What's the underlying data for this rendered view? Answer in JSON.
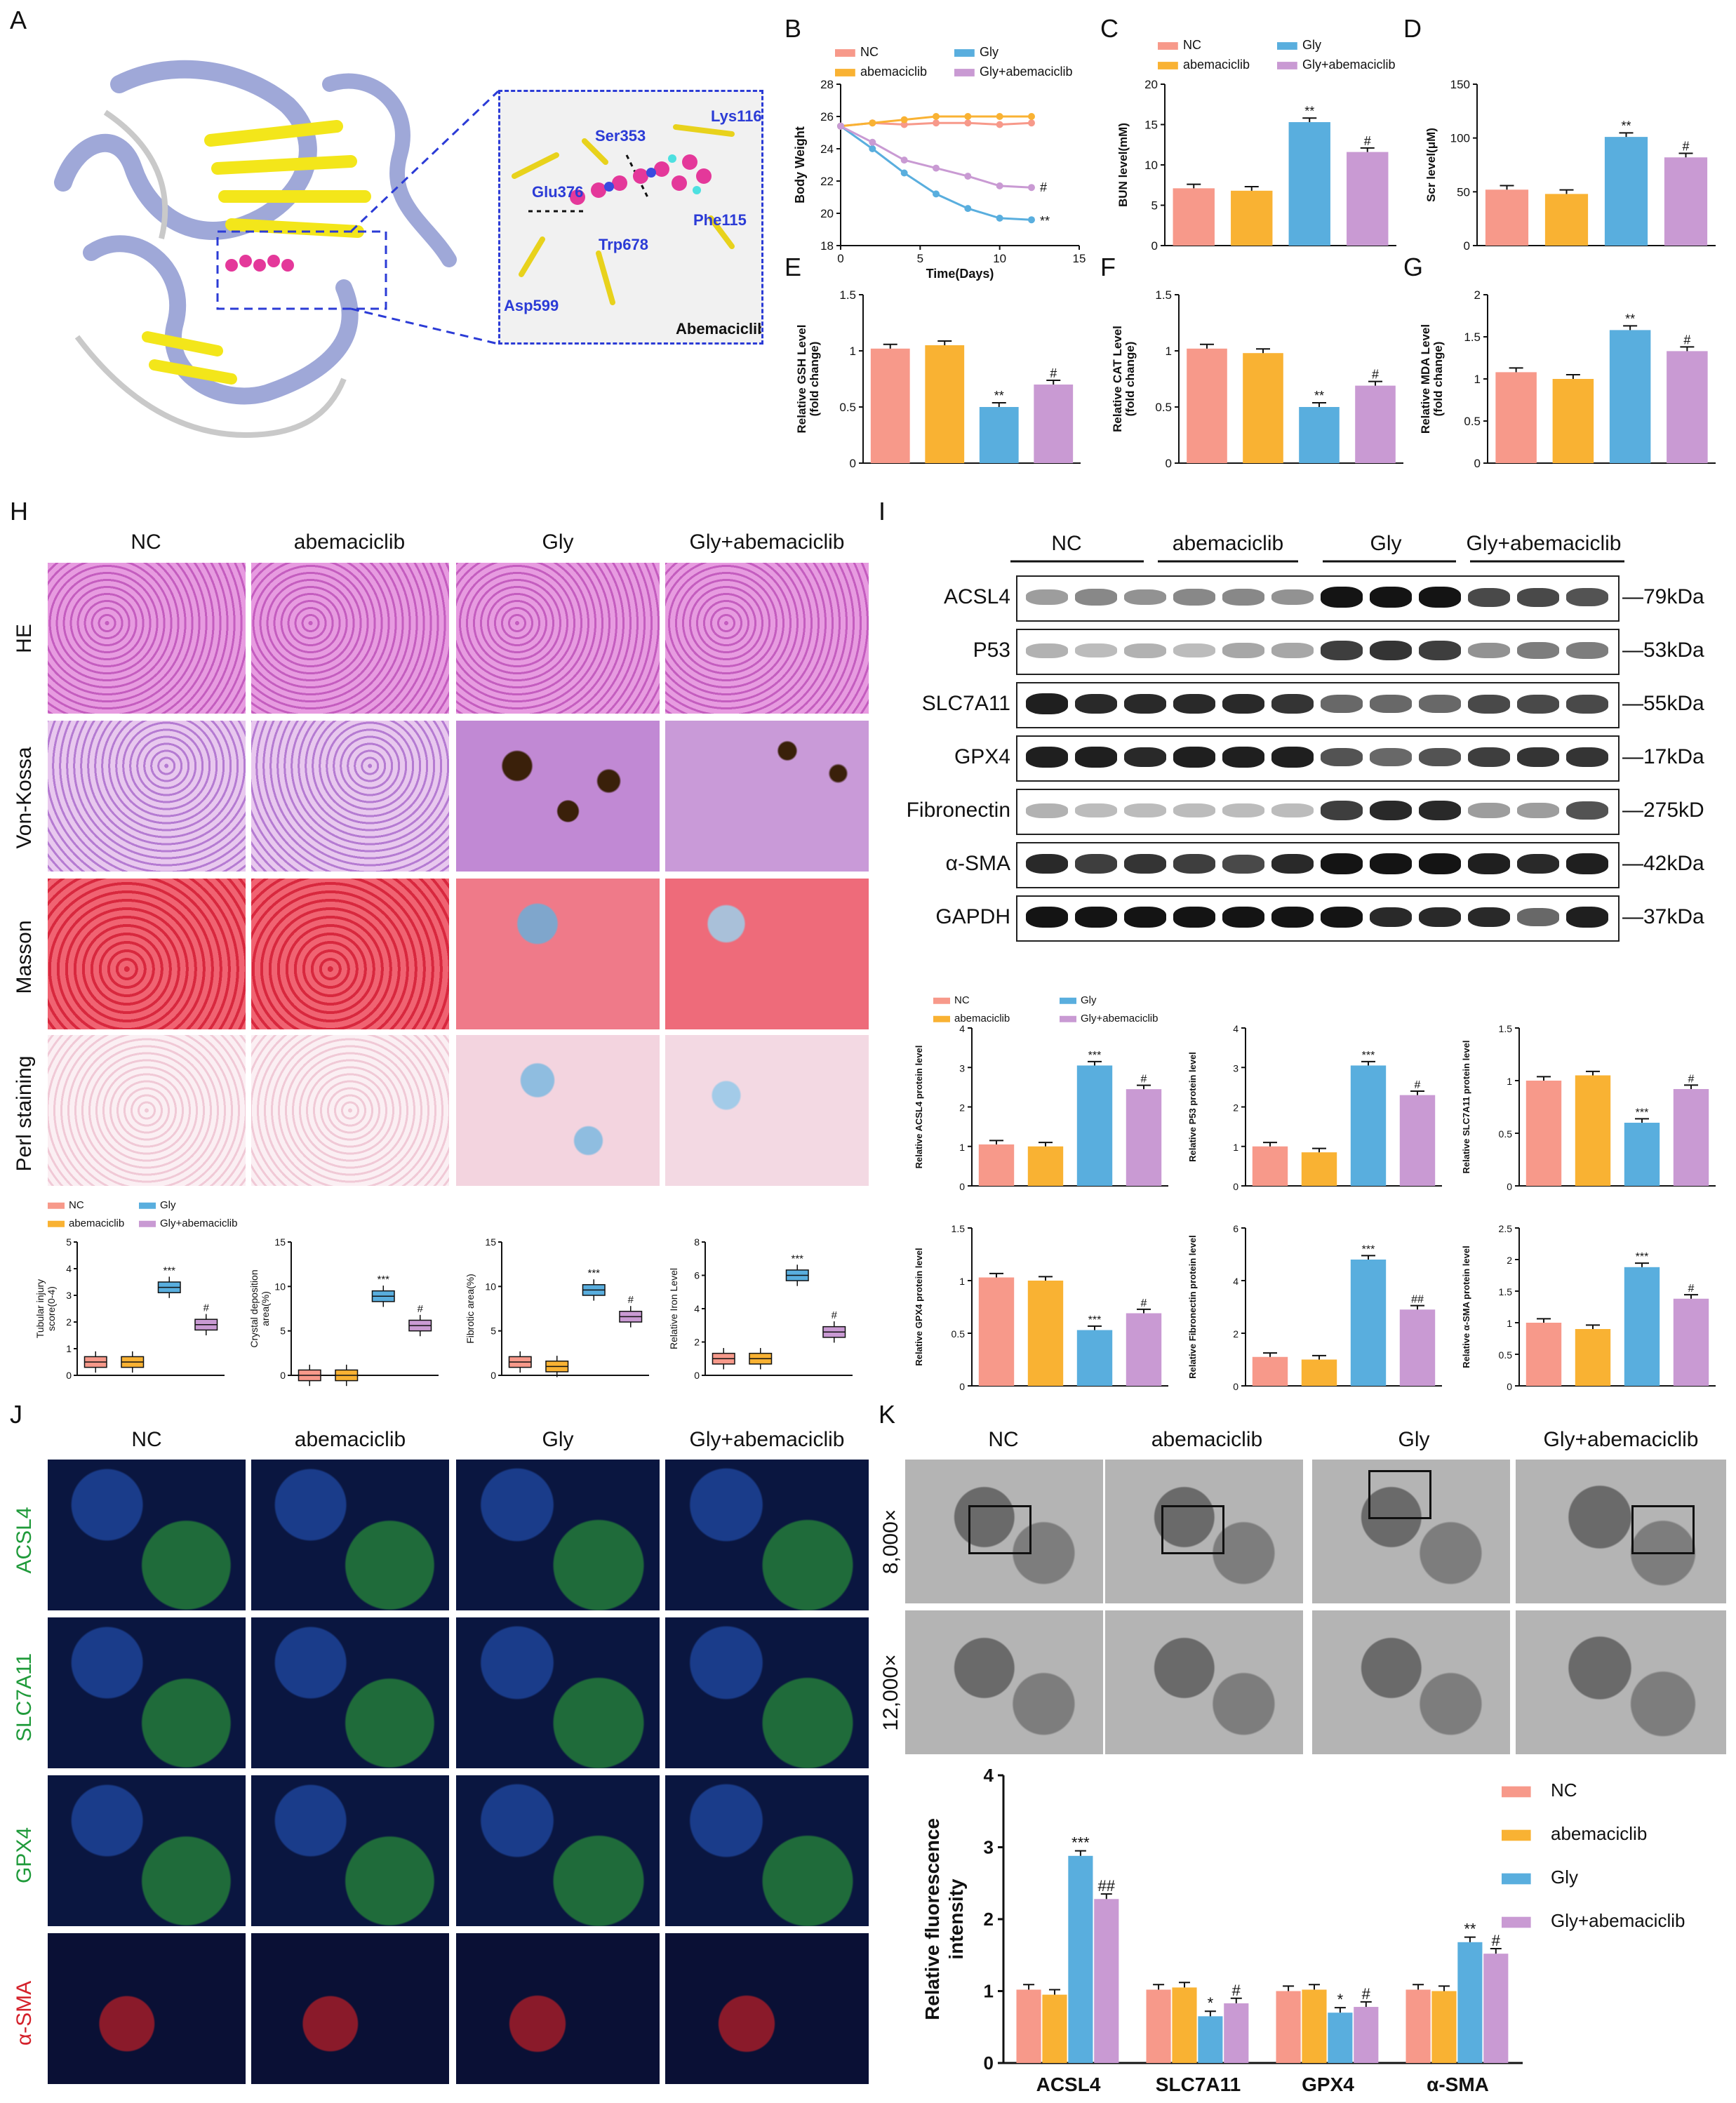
{
  "colors": {
    "nc": "#f7998a",
    "abem": "#f9b233",
    "gly": "#59aede",
    "glyab": "#c99ad3",
    "navy_protein": "#9fa8d8",
    "yellow_sheet": "#f3e61a",
    "ligand": "#e4389a"
  },
  "panel_letters": {
    "A": "A",
    "B": "B",
    "C": "C",
    "D": "D",
    "E": "E",
    "F": "F",
    "G": "G",
    "H": "H",
    "I": "I",
    "J": "J",
    "K": "K"
  },
  "groups": [
    "NC",
    "abemaciclib",
    "Gly",
    "Gly+abemaciclib"
  ],
  "panelA": {
    "residues": [
      "Lys116",
      "Ser353",
      "Glu376",
      "Phe115",
      "Trp678",
      "Asp599"
    ],
    "ligand_name": "Abemaciclib"
  },
  "panelH": {
    "row_labels": [
      "HE",
      "Von-Kossa",
      "Masson",
      "Perl staining"
    ],
    "legend": [
      "NC",
      "Gly",
      "abemaciclib",
      "Gly+abemaciclib"
    ]
  },
  "panelI": {
    "group_headers": [
      "NC",
      "abemaciclib",
      "Gly",
      "Gly+abemaciclib"
    ],
    "proteins": [
      "ACSL4",
      "P53",
      "SLC7A11",
      "GPX4",
      "Fibronectin",
      "α-SMA",
      "GAPDH"
    ],
    "weights": [
      "79kDa",
      "53kDa",
      "55kDa",
      "17kDa",
      "275kD",
      "42kDa",
      "37kDa"
    ],
    "legend": [
      "NC",
      "Gly",
      "abemaciclib",
      "Gly+abemaciclib"
    ]
  },
  "panelJ": {
    "row_labels": [
      "ACSL4",
      "SLC7A11",
      "GPX4",
      "α-SMA"
    ]
  },
  "panelK": {
    "row_labels": [
      "8,000×",
      "12,000×"
    ],
    "legend": [
      "NC",
      "abemaciclib",
      "Gly",
      "Gly+abemaciclib"
    ]
  },
  "chart_data": [
    {
      "id": "B",
      "type": "line",
      "xlabel": "Time(Days)",
      "ylabel": "Body Weight",
      "xlim": [
        0,
        15
      ],
      "ylim": [
        18,
        28
      ],
      "xticks": [
        0,
        5,
        10,
        15
      ],
      "yticks": [
        18,
        20,
        22,
        24,
        26,
        28
      ],
      "legend": [
        "NC",
        "Gly",
        "abemaciclib",
        "Gly+abemaciclib"
      ],
      "x": [
        0,
        2,
        4,
        6,
        8,
        10,
        12
      ],
      "series": [
        {
          "name": "NC",
          "values": [
            25.4,
            25.6,
            25.5,
            25.6,
            25.6,
            25.5,
            25.6
          ]
        },
        {
          "name": "abemaciclib",
          "values": [
            25.4,
            25.6,
            25.8,
            26.0,
            26.0,
            26.0,
            26.0
          ]
        },
        {
          "name": "Gly",
          "values": [
            25.4,
            24.0,
            22.5,
            21.2,
            20.3,
            19.7,
            19.6
          ]
        },
        {
          "name": "Gly+abemaciclib",
          "values": [
            25.4,
            24.4,
            23.3,
            22.8,
            22.3,
            21.7,
            21.6
          ]
        }
      ],
      "annotations": [
        "#",
        "**"
      ]
    },
    {
      "id": "C",
      "type": "bar",
      "ylabel": "BUN level(mM)",
      "ylim": [
        0,
        20
      ],
      "yticks": [
        0,
        5,
        10,
        15,
        20
      ],
      "categories": [
        "NC",
        "abemaciclib",
        "Gly",
        "Gly+abemaciclib"
      ],
      "values": [
        7.1,
        6.8,
        15.3,
        11.6
      ],
      "annotations": [
        "",
        "",
        "**",
        "#"
      ],
      "legend": [
        "NC",
        "Gly",
        "abemaciclib",
        "Gly+abemaciclib"
      ]
    },
    {
      "id": "D",
      "type": "bar",
      "ylabel": "Scr level(μM)",
      "ylim": [
        0,
        150
      ],
      "yticks": [
        0,
        50,
        100,
        150
      ],
      "categories": [
        "NC",
        "abemaciclib",
        "Gly",
        "Gly+abemaciclib"
      ],
      "values": [
        52,
        48,
        101,
        82
      ],
      "annotations": [
        "",
        "",
        "**",
        "#"
      ]
    },
    {
      "id": "E",
      "type": "bar",
      "ylabel": "Relative GSH Level (fold change)",
      "ylim": [
        0,
        1.5
      ],
      "yticks": [
        0.0,
        0.5,
        1.0,
        1.5
      ],
      "categories": [
        "NC",
        "abemaciclib",
        "Gly",
        "Gly+abemaciclib"
      ],
      "values": [
        1.02,
        1.05,
        0.5,
        0.7
      ],
      "annotations": [
        "",
        "",
        "**",
        "#"
      ]
    },
    {
      "id": "F",
      "type": "bar",
      "ylabel": "Relative CAT Level (fold change)",
      "ylim": [
        0,
        1.5
      ],
      "yticks": [
        0.0,
        0.5,
        1.0,
        1.5
      ],
      "categories": [
        "NC",
        "abemaciclib",
        "Gly",
        "Gly+abemaciclib"
      ],
      "values": [
        1.02,
        0.98,
        0.5,
        0.69
      ],
      "annotations": [
        "",
        "",
        "**",
        "#"
      ]
    },
    {
      "id": "G",
      "type": "bar",
      "ylabel": "Relative MDA Level (fold change)",
      "ylim": [
        0,
        2.0
      ],
      "yticks": [
        0.0,
        0.5,
        1.0,
        1.5,
        2.0
      ],
      "categories": [
        "NC",
        "abemaciclib",
        "Gly",
        "Gly+abemaciclib"
      ],
      "values": [
        1.08,
        1.0,
        1.58,
        1.33
      ],
      "annotations": [
        "",
        "",
        "**",
        "#"
      ]
    },
    {
      "id": "H1",
      "type": "box",
      "ylabel": "Tubular injury score(0-4)",
      "ylim": [
        0,
        5
      ],
      "yticks": [
        0,
        1,
        2,
        3,
        4,
        5
      ],
      "categories": [
        "NC",
        "abemaciclib",
        "Gly",
        "Gly+abemaciclib"
      ],
      "values": [
        0.5,
        0.5,
        3.3,
        1.9
      ],
      "annotations": [
        "",
        "",
        "***",
        "#"
      ]
    },
    {
      "id": "H2",
      "type": "box",
      "ylabel": "Crystal deposition area(%)",
      "ylim": [
        0,
        15
      ],
      "yticks": [
        0,
        5,
        10,
        15
      ],
      "categories": [
        "NC",
        "abemaciclib",
        "Gly",
        "Gly+abemaciclib"
      ],
      "values": [
        0,
        0,
        8.9,
        5.6
      ],
      "annotations": [
        "",
        "",
        "***",
        "#"
      ]
    },
    {
      "id": "H3",
      "type": "box",
      "ylabel": "Fibrotic area(%)",
      "ylim": [
        0,
        15
      ],
      "yticks": [
        0,
        5,
        10,
        15
      ],
      "categories": [
        "NC",
        "abemaciclib",
        "Gly",
        "Gly+abemaciclib"
      ],
      "values": [
        1.5,
        1.0,
        9.6,
        6.6
      ],
      "annotations": [
        "",
        "",
        "***",
        "#"
      ]
    },
    {
      "id": "H4",
      "type": "box",
      "ylabel": "Relative Iron Level",
      "ylim": [
        0,
        8
      ],
      "yticks": [
        0,
        2,
        4,
        6,
        8
      ],
      "categories": [
        "NC",
        "abemaciclib",
        "Gly",
        "Gly+abemaciclib"
      ],
      "values": [
        1.0,
        1.0,
        6.0,
        2.6
      ],
      "annotations": [
        "",
        "",
        "***",
        "#"
      ]
    },
    {
      "id": "I1",
      "type": "bar",
      "ylabel": "Relative ACSL4 protein level",
      "ylim": [
        0,
        4
      ],
      "yticks": [
        0,
        1,
        2,
        3,
        4
      ],
      "categories": [
        "NC",
        "abemaciclib",
        "Gly",
        "Gly+abemaciclib"
      ],
      "values": [
        1.05,
        1.0,
        3.05,
        2.45
      ],
      "annotations": [
        "",
        "",
        "***",
        "#"
      ]
    },
    {
      "id": "I2",
      "type": "bar",
      "ylabel": "Relative P53 protein level",
      "ylim": [
        0,
        4
      ],
      "yticks": [
        0,
        1,
        2,
        3,
        4
      ],
      "categories": [
        "NC",
        "abemaciclib",
        "Gly",
        "Gly+abemaciclib"
      ],
      "values": [
        1.0,
        0.85,
        3.05,
        2.3
      ],
      "annotations": [
        "",
        "",
        "***",
        "#"
      ]
    },
    {
      "id": "I3",
      "type": "bar",
      "ylabel": "Relative SLC7A11 protein level",
      "ylim": [
        0,
        1.5
      ],
      "yticks": [
        0.0,
        0.5,
        1.0,
        1.5
      ],
      "categories": [
        "NC",
        "abemaciclib",
        "Gly",
        "Gly+abemaciclib"
      ],
      "values": [
        1.0,
        1.05,
        0.6,
        0.92
      ],
      "annotations": [
        "",
        "",
        "***",
        "#"
      ]
    },
    {
      "id": "I4",
      "type": "bar",
      "ylabel": "Relative GPX4 protein level",
      "ylim": [
        0,
        1.5
      ],
      "yticks": [
        0.0,
        0.5,
        1.0,
        1.5
      ],
      "categories": [
        "NC",
        "abemaciclib",
        "Gly",
        "Gly+abemaciclib"
      ],
      "values": [
        1.03,
        1.0,
        0.53,
        0.69
      ],
      "annotations": [
        "",
        "",
        "***",
        "#"
      ]
    },
    {
      "id": "I5",
      "type": "bar",
      "ylabel": "Relative Fibronectin protein level",
      "ylim": [
        0,
        6
      ],
      "yticks": [
        0,
        2,
        4,
        6
      ],
      "categories": [
        "NC",
        "abemaciclib",
        "Gly",
        "Gly+abemaciclib"
      ],
      "values": [
        1.1,
        1.0,
        4.8,
        2.9
      ],
      "annotations": [
        "",
        "",
        "***",
        "##"
      ]
    },
    {
      "id": "I6",
      "type": "bar",
      "ylabel": "Relative α-SMA protein level",
      "ylim": [
        0,
        2.5
      ],
      "yticks": [
        0.0,
        0.5,
        1.0,
        1.5,
        2.0,
        2.5
      ],
      "categories": [
        "NC",
        "abemaciclib",
        "Gly",
        "Gly+abemaciclib"
      ],
      "values": [
        1.0,
        0.9,
        1.88,
        1.38
      ],
      "annotations": [
        "",
        "",
        "***",
        "#"
      ]
    },
    {
      "id": "K",
      "type": "bar",
      "ylabel": "Relative fluorescence intensity",
      "ylim": [
        0,
        4
      ],
      "yticks": [
        0,
        1,
        2,
        3,
        4
      ],
      "categories": [
        "ACSL4",
        "SLC7A11",
        "GPX4",
        "α-SMA"
      ],
      "series": [
        {
          "name": "NC",
          "values": [
            1.02,
            1.02,
            1.0,
            1.02
          ]
        },
        {
          "name": "abemaciclib",
          "values": [
            0.95,
            1.05,
            1.02,
            1.0
          ]
        },
        {
          "name": "Gly",
          "values": [
            2.88,
            0.65,
            0.7,
            1.68
          ]
        },
        {
          "name": "Gly+abemaciclib",
          "values": [
            2.28,
            0.83,
            0.78,
            1.52
          ]
        }
      ],
      "annotations": [
        [
          "",
          "",
          "***",
          "##"
        ],
        [
          "",
          "",
          "*",
          "#"
        ],
        [
          "",
          "",
          "*",
          "#"
        ],
        [
          "",
          "",
          "**",
          "#"
        ]
      ]
    }
  ]
}
